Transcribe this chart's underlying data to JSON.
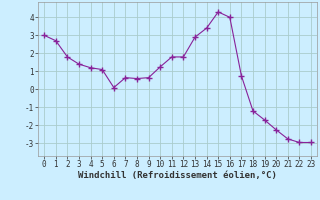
{
  "x": [
    0,
    1,
    2,
    3,
    4,
    5,
    6,
    7,
    8,
    9,
    10,
    11,
    12,
    13,
    14,
    15,
    16,
    17,
    18,
    19,
    20,
    21,
    22,
    23
  ],
  "y": [
    3.0,
    2.7,
    1.8,
    1.4,
    1.2,
    1.1,
    0.1,
    0.65,
    0.6,
    0.65,
    1.25,
    1.8,
    1.8,
    2.9,
    3.4,
    4.3,
    4.0,
    0.75,
    -1.2,
    -1.7,
    -2.25,
    -2.75,
    -2.95,
    -2.95
  ],
  "line_color": "#882299",
  "marker": "+",
  "marker_size": 4,
  "marker_linewidth": 1.0,
  "line_width": 0.8,
  "background_color": "#cceeff",
  "grid_color": "#aacccc",
  "xlabel": "Windchill (Refroidissement éolien,°C)",
  "xlabel_fontsize": 6.5,
  "xlabel_fontweight": "bold",
  "xlim": [
    -0.5,
    23.5
  ],
  "ylim": [
    -3.7,
    4.85
  ],
  "yticks": [
    -3,
    -2,
    -1,
    0,
    1,
    2,
    3,
    4
  ],
  "xticks": [
    0,
    1,
    2,
    3,
    4,
    5,
    6,
    7,
    8,
    9,
    10,
    11,
    12,
    13,
    14,
    15,
    16,
    17,
    18,
    19,
    20,
    21,
    22,
    23
  ],
  "tick_fontsize": 5.5,
  "axis_color": "#333333",
  "spine_color": "#999999"
}
